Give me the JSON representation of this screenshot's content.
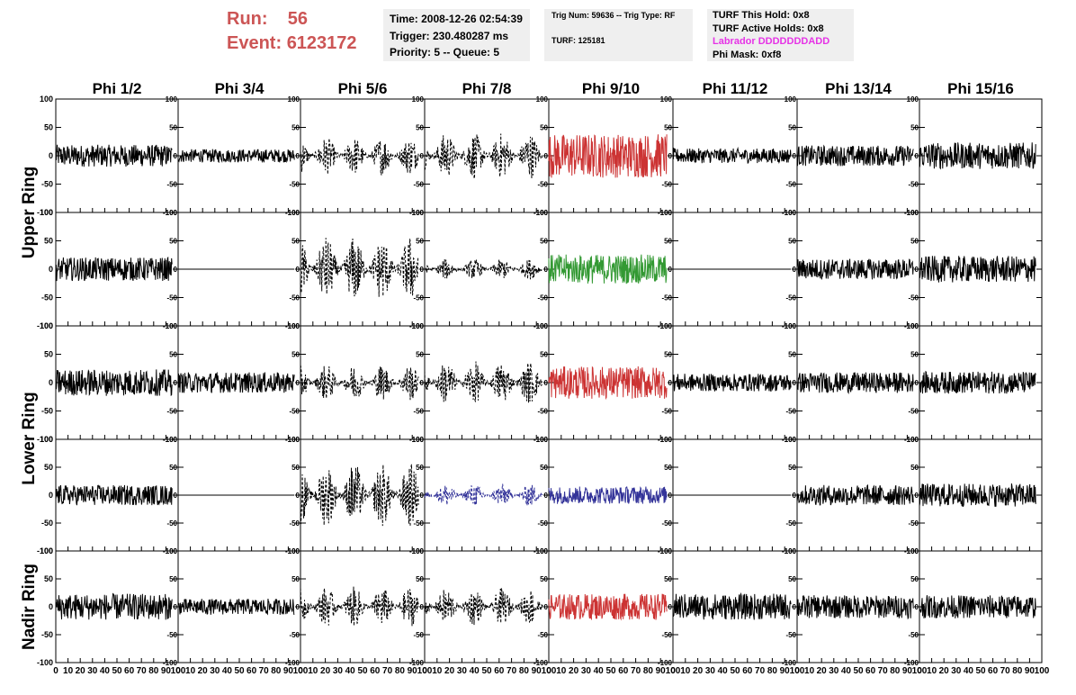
{
  "header": {
    "run_label": "Run:",
    "run_value": "56",
    "event_label": "Event:",
    "event_value": "6123172",
    "time": "Time: 2008-12-26 02:54:39",
    "trigger": "Trigger: 230.480287 ms",
    "priority": "Priority: 5 -- Queue: 5",
    "trig_num": "Trig Num: 59636 -- Trig Type: RF",
    "turf": "TURF: 125181",
    "turf_this_hold": "TURF This Hold: 0x8",
    "turf_active_holds": "TURF Active Holds: 0x8",
    "labrador": "Labrador DDDDDDDADD",
    "phi_mask": "Phi Mask: 0xf8"
  },
  "colors": {
    "header_red": "#cc5555",
    "labrador_magenta": "#e633e6",
    "trace_black": "#000000",
    "trace_red": "#cc3333",
    "trace_green": "#339933",
    "trace_blue": "#333399",
    "info_bg": "#efefef"
  },
  "chart_data": {
    "type": "line",
    "columns": [
      "Phi 1/2",
      "Phi 3/4",
      "Phi 5/6",
      "Phi 7/8",
      "Phi 9/10",
      "Phi 11/12",
      "Phi 13/14",
      "Phi 15/16"
    ],
    "row_groups": [
      "Upper Ring",
      "Lower Ring",
      "Nadir Ring"
    ],
    "rows": 5,
    "xlim": [
      0,
      100
    ],
    "ylim": [
      -100,
      100
    ],
    "x_ticks": [
      0,
      10,
      20,
      30,
      40,
      50,
      60,
      70,
      80,
      90,
      100
    ],
    "x_tick_labels": [
      "0",
      "10",
      "20",
      "30",
      "40",
      "50",
      "60",
      "70",
      "80",
      "90",
      "100"
    ],
    "y_ticks": [
      -100,
      -50,
      0,
      50,
      100
    ],
    "y_tick_labels": [
      "-100",
      "-50",
      "0",
      "50",
      "100"
    ],
    "trace_x_range": [
      0,
      95
    ],
    "traces": [
      [
        {
          "amp": 15,
          "style": "solid",
          "color": "trace_black"
        },
        {
          "amp": 9,
          "style": "solid",
          "color": "trace_black"
        },
        {
          "amp": 26,
          "style": "dashed",
          "color": "trace_black"
        },
        {
          "amp": 32,
          "style": "dashed",
          "color": "trace_black"
        },
        {
          "amp": 30,
          "style": "solid",
          "color": "trace_red"
        },
        {
          "amp": 10,
          "style": "solid",
          "color": "trace_black"
        },
        {
          "amp": 14,
          "style": "solid",
          "color": "trace_black"
        },
        {
          "amp": 18,
          "style": "solid",
          "color": "trace_black"
        }
      ],
      [
        {
          "amp": 16,
          "style": "solid",
          "color": "trace_black"
        },
        {
          "amp": 0,
          "style": "solid",
          "color": "trace_black"
        },
        {
          "amp": 45,
          "style": "dashed",
          "color": "trace_black"
        },
        {
          "amp": 14,
          "style": "dashed",
          "color": "trace_black"
        },
        {
          "amp": 20,
          "style": "solid",
          "color": "trace_green"
        },
        {
          "amp": 0,
          "style": "solid",
          "color": "trace_black"
        },
        {
          "amp": 14,
          "style": "solid",
          "color": "trace_black"
        },
        {
          "amp": 18,
          "style": "solid",
          "color": "trace_black"
        }
      ],
      [
        {
          "amp": 18,
          "style": "solid",
          "color": "trace_black"
        },
        {
          "amp": 14,
          "style": "solid",
          "color": "trace_black"
        },
        {
          "amp": 25,
          "style": "dashed",
          "color": "trace_black"
        },
        {
          "amp": 30,
          "style": "dashed",
          "color": "trace_black"
        },
        {
          "amp": 22,
          "style": "solid",
          "color": "trace_red"
        },
        {
          "amp": 12,
          "style": "solid",
          "color": "trace_black"
        },
        {
          "amp": 14,
          "style": "solid",
          "color": "trace_black"
        },
        {
          "amp": 15,
          "style": "solid",
          "color": "trace_black"
        }
      ],
      [
        {
          "amp": 14,
          "style": "solid",
          "color": "trace_black"
        },
        {
          "amp": 0,
          "style": "solid",
          "color": "trace_black"
        },
        {
          "amp": 45,
          "style": "dashed",
          "color": "trace_black"
        },
        {
          "amp": 16,
          "style": "dashed",
          "color": "trace_blue"
        },
        {
          "amp": 12,
          "style": "solid",
          "color": "trace_blue"
        },
        {
          "amp": 0,
          "style": "solid",
          "color": "trace_black"
        },
        {
          "amp": 14,
          "style": "solid",
          "color": "trace_black"
        },
        {
          "amp": 16,
          "style": "solid",
          "color": "trace_black"
        }
      ],
      [
        {
          "amp": 18,
          "style": "solid",
          "color": "trace_black"
        },
        {
          "amp": 11,
          "style": "solid",
          "color": "trace_black"
        },
        {
          "amp": 28,
          "style": "dashed",
          "color": "trace_black"
        },
        {
          "amp": 26,
          "style": "dashed",
          "color": "trace_black"
        },
        {
          "amp": 18,
          "style": "solid",
          "color": "trace_red"
        },
        {
          "amp": 18,
          "style": "solid",
          "color": "trace_black"
        },
        {
          "amp": 16,
          "style": "solid",
          "color": "trace_black"
        },
        {
          "amp": 16,
          "style": "solid",
          "color": "trace_black"
        }
      ]
    ]
  }
}
